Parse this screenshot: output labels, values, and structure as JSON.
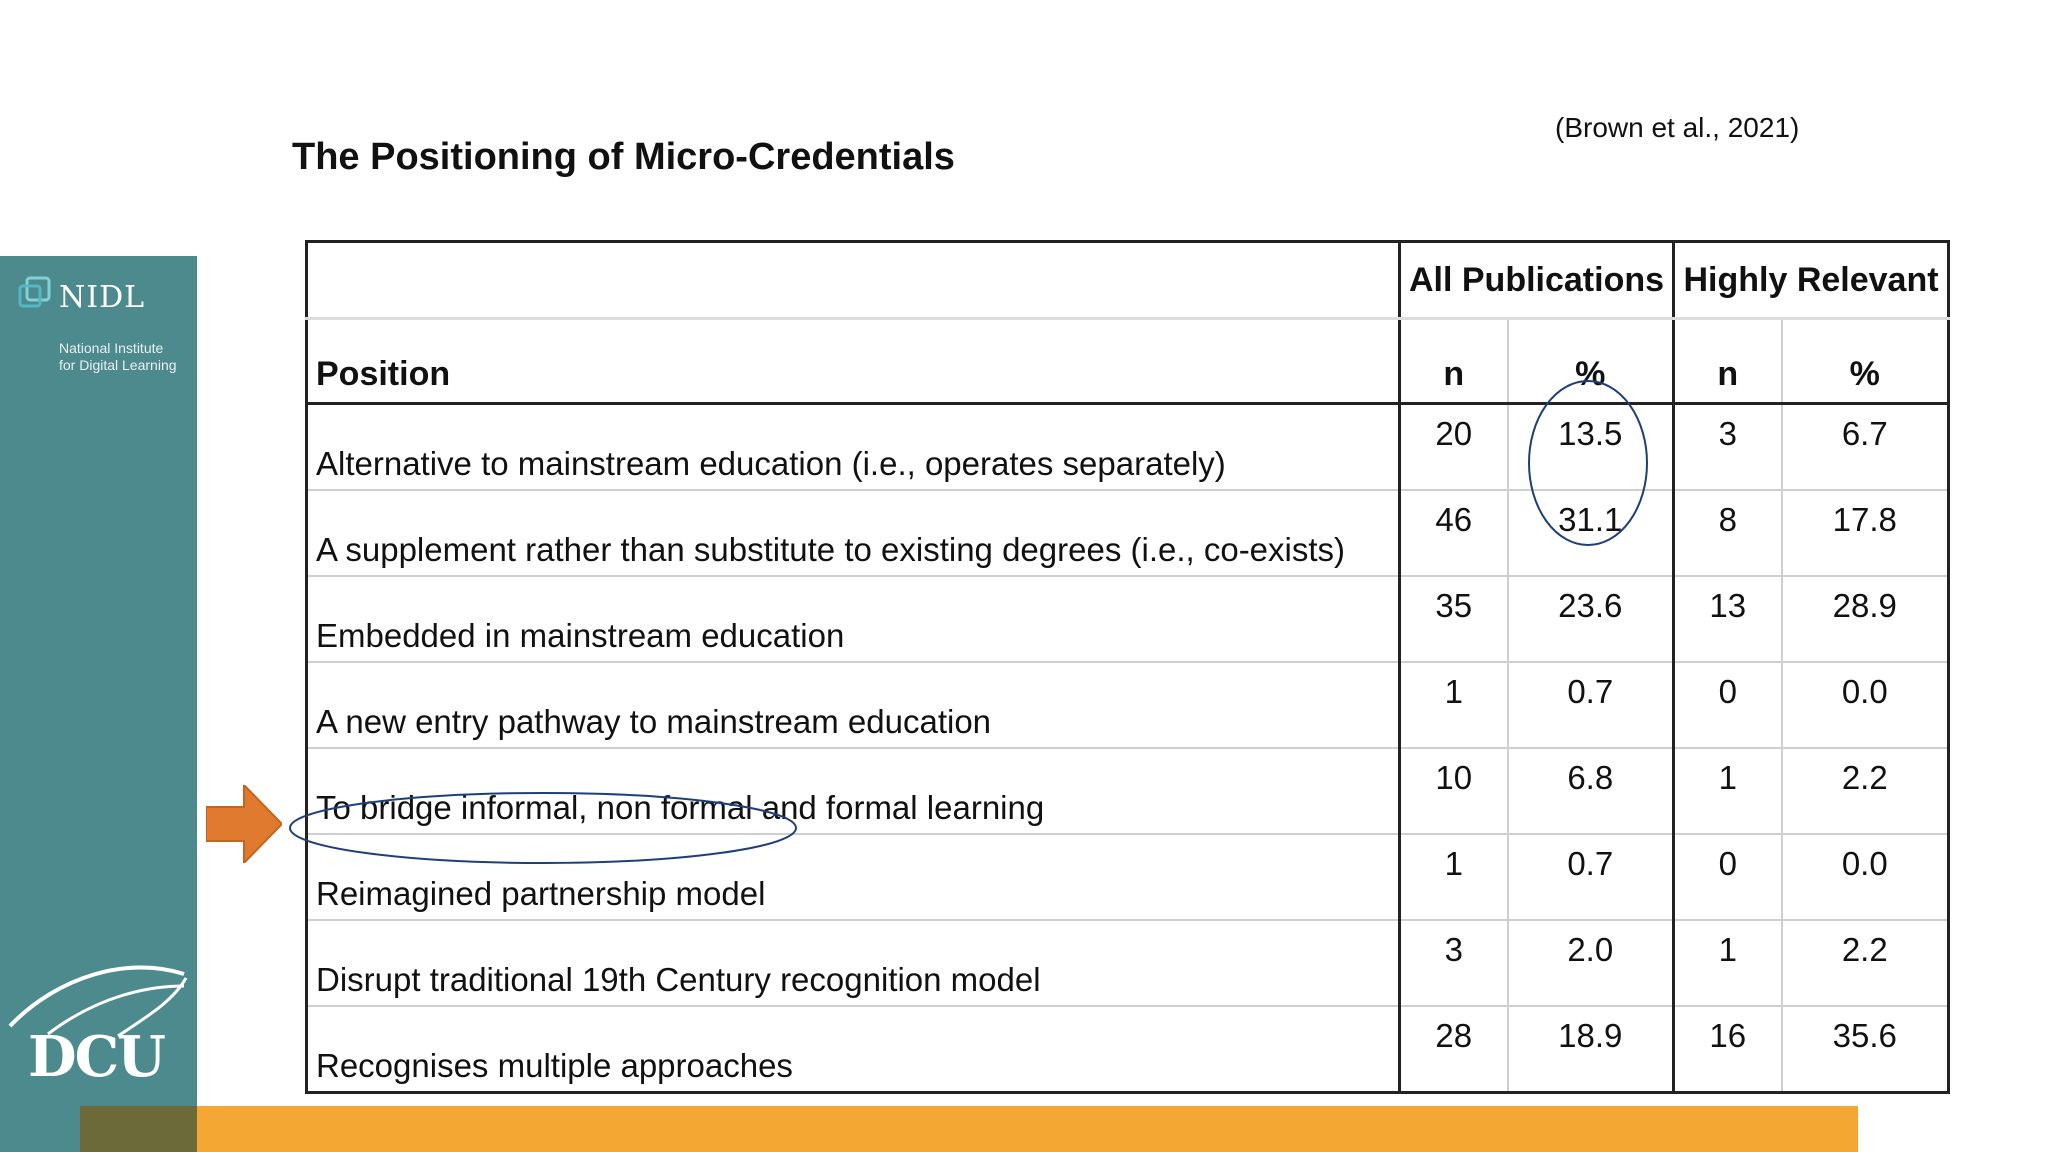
{
  "slide": {
    "title": "The Positioning of Micro-Credentials",
    "citation": "(Brown et al., 2021)"
  },
  "logo": {
    "nidl_name": "NIDL",
    "nidl_subtitle_line1": "National Institute",
    "nidl_subtitle_line2": "for Digital Learning",
    "dcu_name": "DCU"
  },
  "colors": {
    "sidebar": "#4d8a8e",
    "accent_band": "#f5a733",
    "arrow": "#e07a2e",
    "annotation_ellipse": "#1f3f7a"
  },
  "table": {
    "group_headers": [
      "All Publications",
      "Highly Relevant"
    ],
    "column_headers": [
      "Position",
      "n",
      "%",
      "n",
      "%"
    ],
    "rows": [
      {
        "position": "Alternative to mainstream education (i.e., operates separately)",
        "all_n": "20",
        "all_pct": "13.5",
        "hr_n": "3",
        "hr_pct": "6.7"
      },
      {
        "position": "A supplement rather than substitute to existing degrees (i.e., co-exists)",
        "all_n": "46",
        "all_pct": "31.1",
        "hr_n": "8",
        "hr_pct": "17.8"
      },
      {
        "position": "Embedded in mainstream education",
        "all_n": "35",
        "all_pct": "23.6",
        "hr_n": "13",
        "hr_pct": "28.9"
      },
      {
        "position": "A new entry pathway to mainstream education",
        "all_n": "1",
        "all_pct": "0.7",
        "hr_n": "0",
        "hr_pct": "0.0"
      },
      {
        "position": "To bridge informal, non formal and formal learning",
        "all_n": "10",
        "all_pct": "6.8",
        "hr_n": "1",
        "hr_pct": "2.2"
      },
      {
        "position": "Reimagined partnership model",
        "all_n": "1",
        "all_pct": "0.7",
        "hr_n": "0",
        "hr_pct": "0.0"
      },
      {
        "position": "Disrupt traditional 19th Century recognition model",
        "all_n": "3",
        "all_pct": "2.0",
        "hr_n": "1",
        "hr_pct": "2.2"
      },
      {
        "position": "Recognises multiple approaches",
        "all_n": "28",
        "all_pct": "18.9",
        "hr_n": "16",
        "hr_pct": "35.6"
      }
    ]
  },
  "annotations": {
    "highlight_arrow_icon": "arrow-right-icon",
    "circled_percent_rows": [
      0,
      1
    ],
    "circled_position_row": 5
  }
}
